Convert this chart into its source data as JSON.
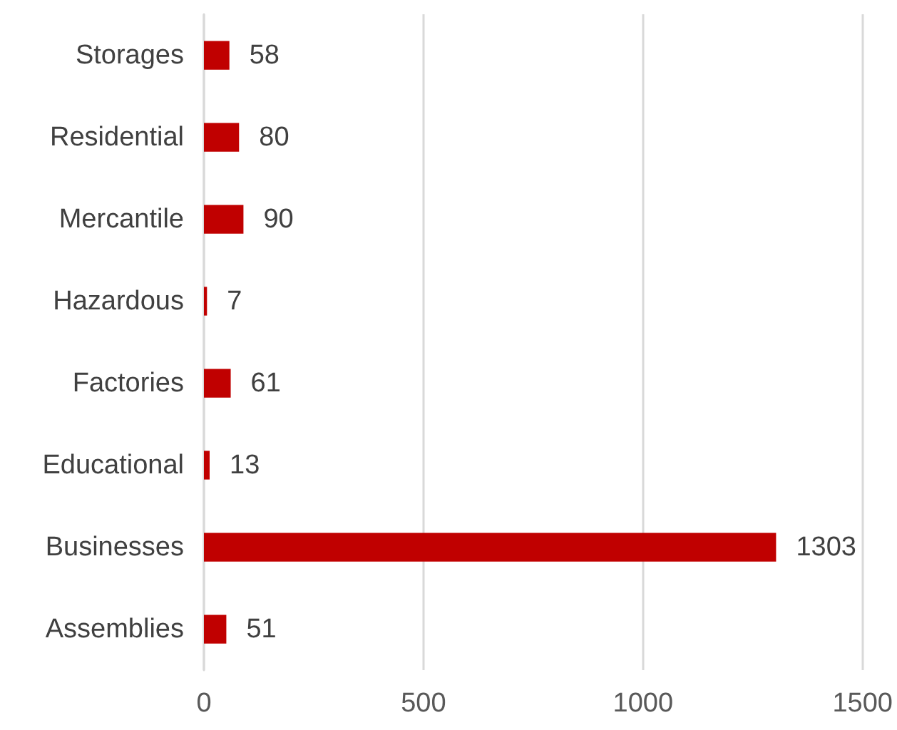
{
  "chart_data": {
    "type": "bar",
    "orientation": "horizontal",
    "categories": [
      "Storages",
      "Residential",
      "Mercantile",
      "Hazardous",
      "Factories",
      "Educational",
      "Businesses",
      "Assemblies"
    ],
    "values": [
      58,
      80,
      90,
      7,
      61,
      13,
      1303,
      51
    ],
    "color": "#c00000",
    "xlim": [
      0,
      1500
    ],
    "xticks": [
      0,
      500,
      1000,
      1500
    ],
    "grid": "x",
    "data_labels": true
  }
}
